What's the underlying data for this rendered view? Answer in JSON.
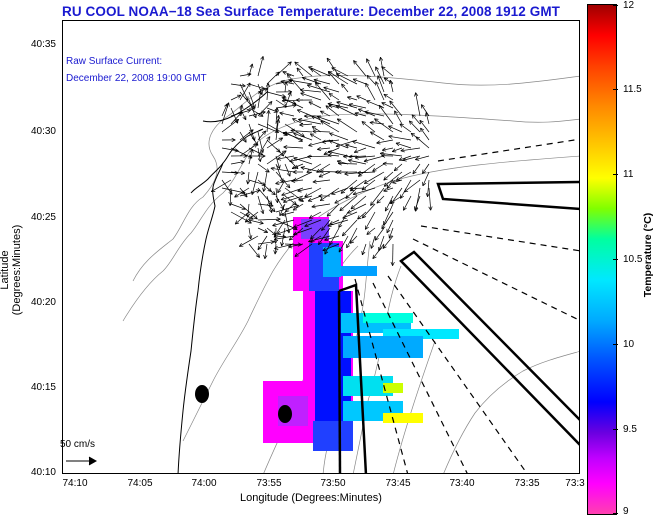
{
  "title": "RU COOL  NOAA−18  Sea Surface Temperature:  December 22, 2008 1912 GMT",
  "current_note": {
    "line1": "Raw Surface Current:",
    "line2": "December 22, 2008 19:00 GMT"
  },
  "scale_label": "50 cm/s",
  "axes": {
    "xlabel": "Longitude (Degrees:Minutes)",
    "ylabel": "Latitude (Degrees:Minutes)",
    "xticks": [
      "74:10",
      "74:05",
      "74:00",
      "73:55",
      "73:50",
      "73:45",
      "73:40",
      "73:35",
      "73:3"
    ],
    "yticks": [
      "40:35",
      "40:30",
      "40:25",
      "40:20",
      "40:15",
      "40:10"
    ]
  },
  "colorbar": {
    "label": "Temperature (°C)",
    "ticks": [
      "12",
      "11.5",
      "11",
      "10.5",
      "10",
      "9.5",
      "9"
    ],
    "min": 9,
    "max": 12
  },
  "icons": {
    "arrow": "current-vector-icon",
    "station": "station-marker-icon"
  }
}
